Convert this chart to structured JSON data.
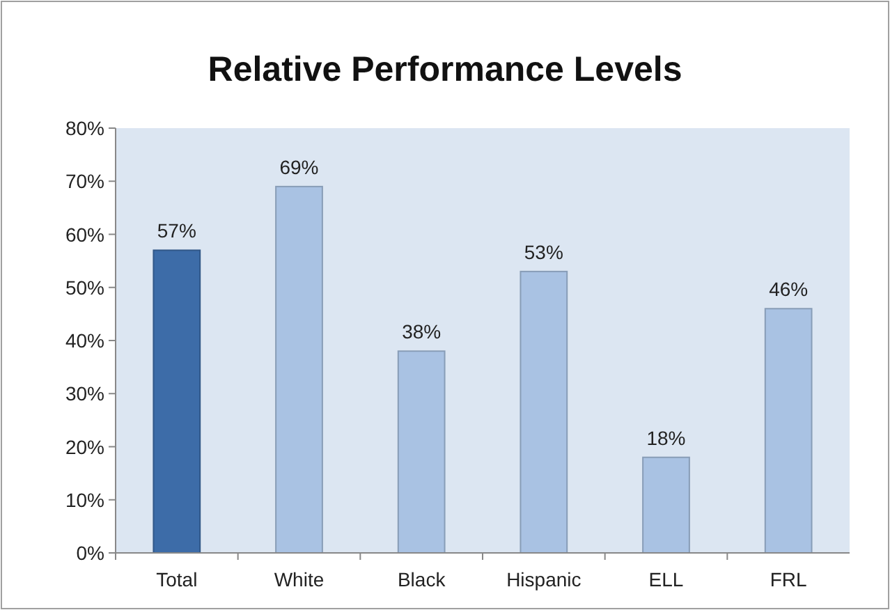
{
  "chart_data": {
    "type": "bar",
    "title": "Relative Performance Levels",
    "categories": [
      "Total",
      "White",
      "Black",
      "Hispanic",
      "ELL",
      "FRL"
    ],
    "values": [
      57,
      69,
      38,
      53,
      18,
      46
    ],
    "colors": [
      "#3d6ca8",
      "#a9c2e3",
      "#a9c2e3",
      "#a9c2e3",
      "#a9c2e3",
      "#a9c2e3"
    ],
    "value_labels": [
      "57%",
      "69%",
      "38%",
      "53%",
      "18%",
      "46%"
    ],
    "ylim": [
      0,
      80
    ],
    "yticks": [
      {
        "value": 0,
        "label": "0%"
      },
      {
        "value": 10,
        "label": "10%"
      },
      {
        "value": 20,
        "label": "20%"
      },
      {
        "value": 30,
        "label": "30%"
      },
      {
        "value": 40,
        "label": "40%"
      },
      {
        "value": 50,
        "label": "50%"
      },
      {
        "value": 60,
        "label": "60%"
      },
      {
        "value": 70,
        "label": "70%"
      },
      {
        "value": 80,
        "label": "80%"
      }
    ],
    "grid": false
  }
}
